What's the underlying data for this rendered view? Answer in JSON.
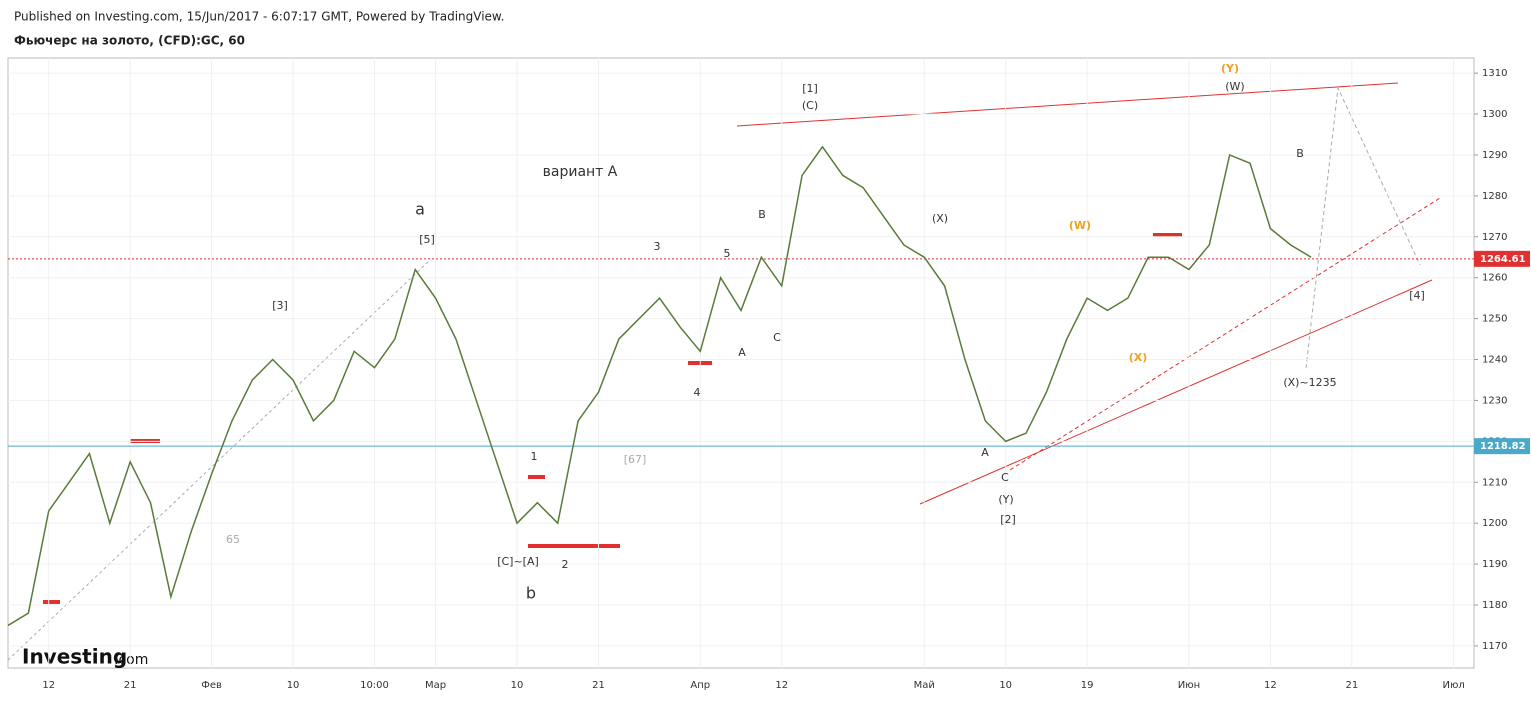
{
  "header": {
    "published": "Published on Investing.com, 15/Jun/2017 - 6:07:17 GMT, Powered by TradingView.",
    "symbol": "Фьючерс на золото, (CFD):GC, 60",
    "logo": "Investing",
    "logo_suffix": ".com"
  },
  "chart_data": {
    "type": "line",
    "color": "#5a7a3a",
    "categories": [
      null,
      null,
      "12",
      null,
      null,
      null,
      "21",
      null,
      null,
      null,
      "Фев",
      null,
      null,
      null,
      "10",
      null,
      null,
      null,
      "10:00",
      null,
      null,
      "Мар",
      null,
      null,
      null,
      "10",
      null,
      null,
      null,
      "21",
      null,
      null,
      null,
      null,
      "Апр",
      null,
      null,
      null,
      "12",
      null,
      null,
      null,
      null,
      null,
      null,
      "Май",
      null,
      null,
      null,
      "10",
      null,
      null,
      null,
      "19",
      null,
      null,
      null,
      null,
      "Июн",
      null,
      null,
      null,
      "12",
      null,
      null,
      null,
      "21",
      null,
      null,
      null,
      null,
      "Июл",
      null
    ],
    "values": [
      1175,
      1178,
      1203,
      1210,
      1217,
      1200,
      1215,
      1205,
      1182,
      1198,
      1212,
      1225,
      1235,
      1240,
      1235,
      1225,
      1230,
      1242,
      1238,
      1245,
      1262,
      1255,
      1245,
      1230,
      1215,
      1200,
      1205,
      1200,
      1225,
      1232,
      1245,
      1250,
      1255,
      1248,
      1242,
      1260,
      1252,
      1265,
      1258,
      1285,
      1292,
      1285,
      1282,
      1275,
      1268,
      1265,
      1258,
      1240,
      1225,
      1220,
      1222,
      1232,
      1245,
      1255,
      1252,
      1255,
      1265,
      1265,
      1262,
      1268,
      1290,
      1288,
      1272,
      1268,
      1265,
      null,
      null,
      null,
      null,
      null,
      null,
      null,
      null
    ],
    "ylim": [
      1164.6,
      1313.7
    ],
    "yticks": [
      1170,
      1180,
      1190,
      1200,
      1210,
      1220,
      1230,
      1240,
      1250,
      1260,
      1270,
      1280,
      1290,
      1300,
      1310
    ],
    "grid": true,
    "price_lines": [
      {
        "value": 1264.61,
        "color": "#e03030"
      },
      {
        "value": 1218.82,
        "color": "#4aa8c8"
      }
    ],
    "annotations": [
      "вариант А",
      "a",
      "b",
      "[1]",
      "(C)",
      "(Y)",
      "(W)",
      "(X)~1235",
      "[4]",
      "[2]",
      "(Y)",
      "[67]",
      "65",
      "A",
      "C",
      "B",
      "(W)",
      "(X)",
      "[5]",
      "[C]~[A]",
      "2",
      "1",
      "3",
      "4",
      "5",
      "B",
      "C",
      "A",
      "(X)",
      "[3]"
    ]
  }
}
